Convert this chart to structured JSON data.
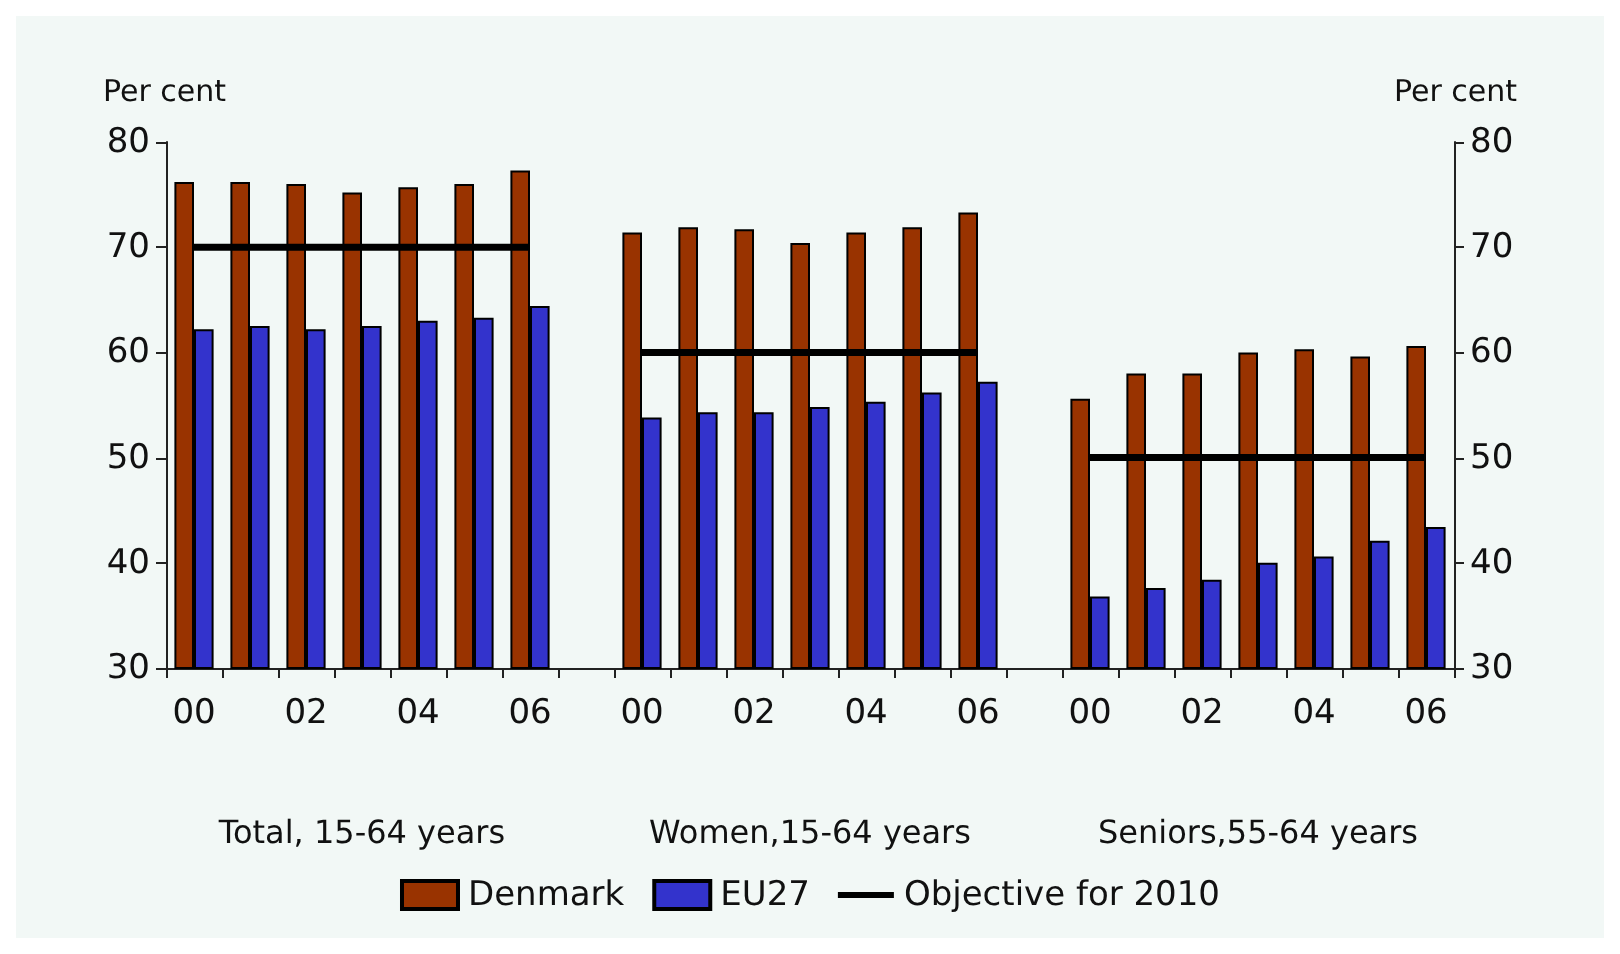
{
  "chart_data": {
    "type": "bar",
    "ylabel": "Per cent",
    "y2label": "Per cent",
    "categories": [
      "00",
      null,
      "02",
      null,
      "04",
      null,
      "06",
      null,
      "00",
      null,
      "02",
      null,
      "04",
      null,
      "06",
      null,
      "00",
      null,
      "02",
      null,
      "04",
      null,
      "06"
    ],
    "series": [
      {
        "name": "Denmark",
        "color": "#993300",
        "values": [
          76.2,
          76.2,
          76.0,
          75.2,
          75.7,
          76.0,
          77.3,
          null,
          71.4,
          71.9,
          71.7,
          70.4,
          71.4,
          71.9,
          73.3,
          null,
          55.6,
          58.0,
          58.0,
          60.0,
          60.3,
          59.6,
          60.6
        ]
      },
      {
        "name": "EU27",
        "color": "#3333cc",
        "values": [
          62.2,
          62.5,
          62.2,
          62.5,
          63.0,
          63.3,
          64.4,
          null,
          53.8,
          54.3,
          54.3,
          54.8,
          55.3,
          56.2,
          57.2,
          null,
          36.8,
          37.6,
          38.4,
          40.0,
          40.6,
          42.1,
          43.4
        ]
      },
      {
        "name": "Objective for 2010",
        "type": "line",
        "color": "#000000",
        "marker": "none",
        "values": [
          70,
          70,
          70,
          70,
          70,
          70,
          70,
          null,
          60,
          60,
          60,
          60,
          60,
          60,
          60,
          null,
          50,
          50,
          50,
          50,
          50,
          50,
          50
        ]
      }
    ],
    "ylim": [
      30,
      80
    ],
    "yticks": [
      30,
      40,
      50,
      60,
      70,
      80
    ],
    "y2lim": [
      30,
      80
    ],
    "y2ticks": [
      30,
      40,
      50,
      60,
      70,
      80
    ],
    "annotations": [
      "Total, 15-64 years",
      "Women,15-64 years",
      "Seniors,55-64 years"
    ],
    "grid": false,
    "legend": "bottom"
  }
}
